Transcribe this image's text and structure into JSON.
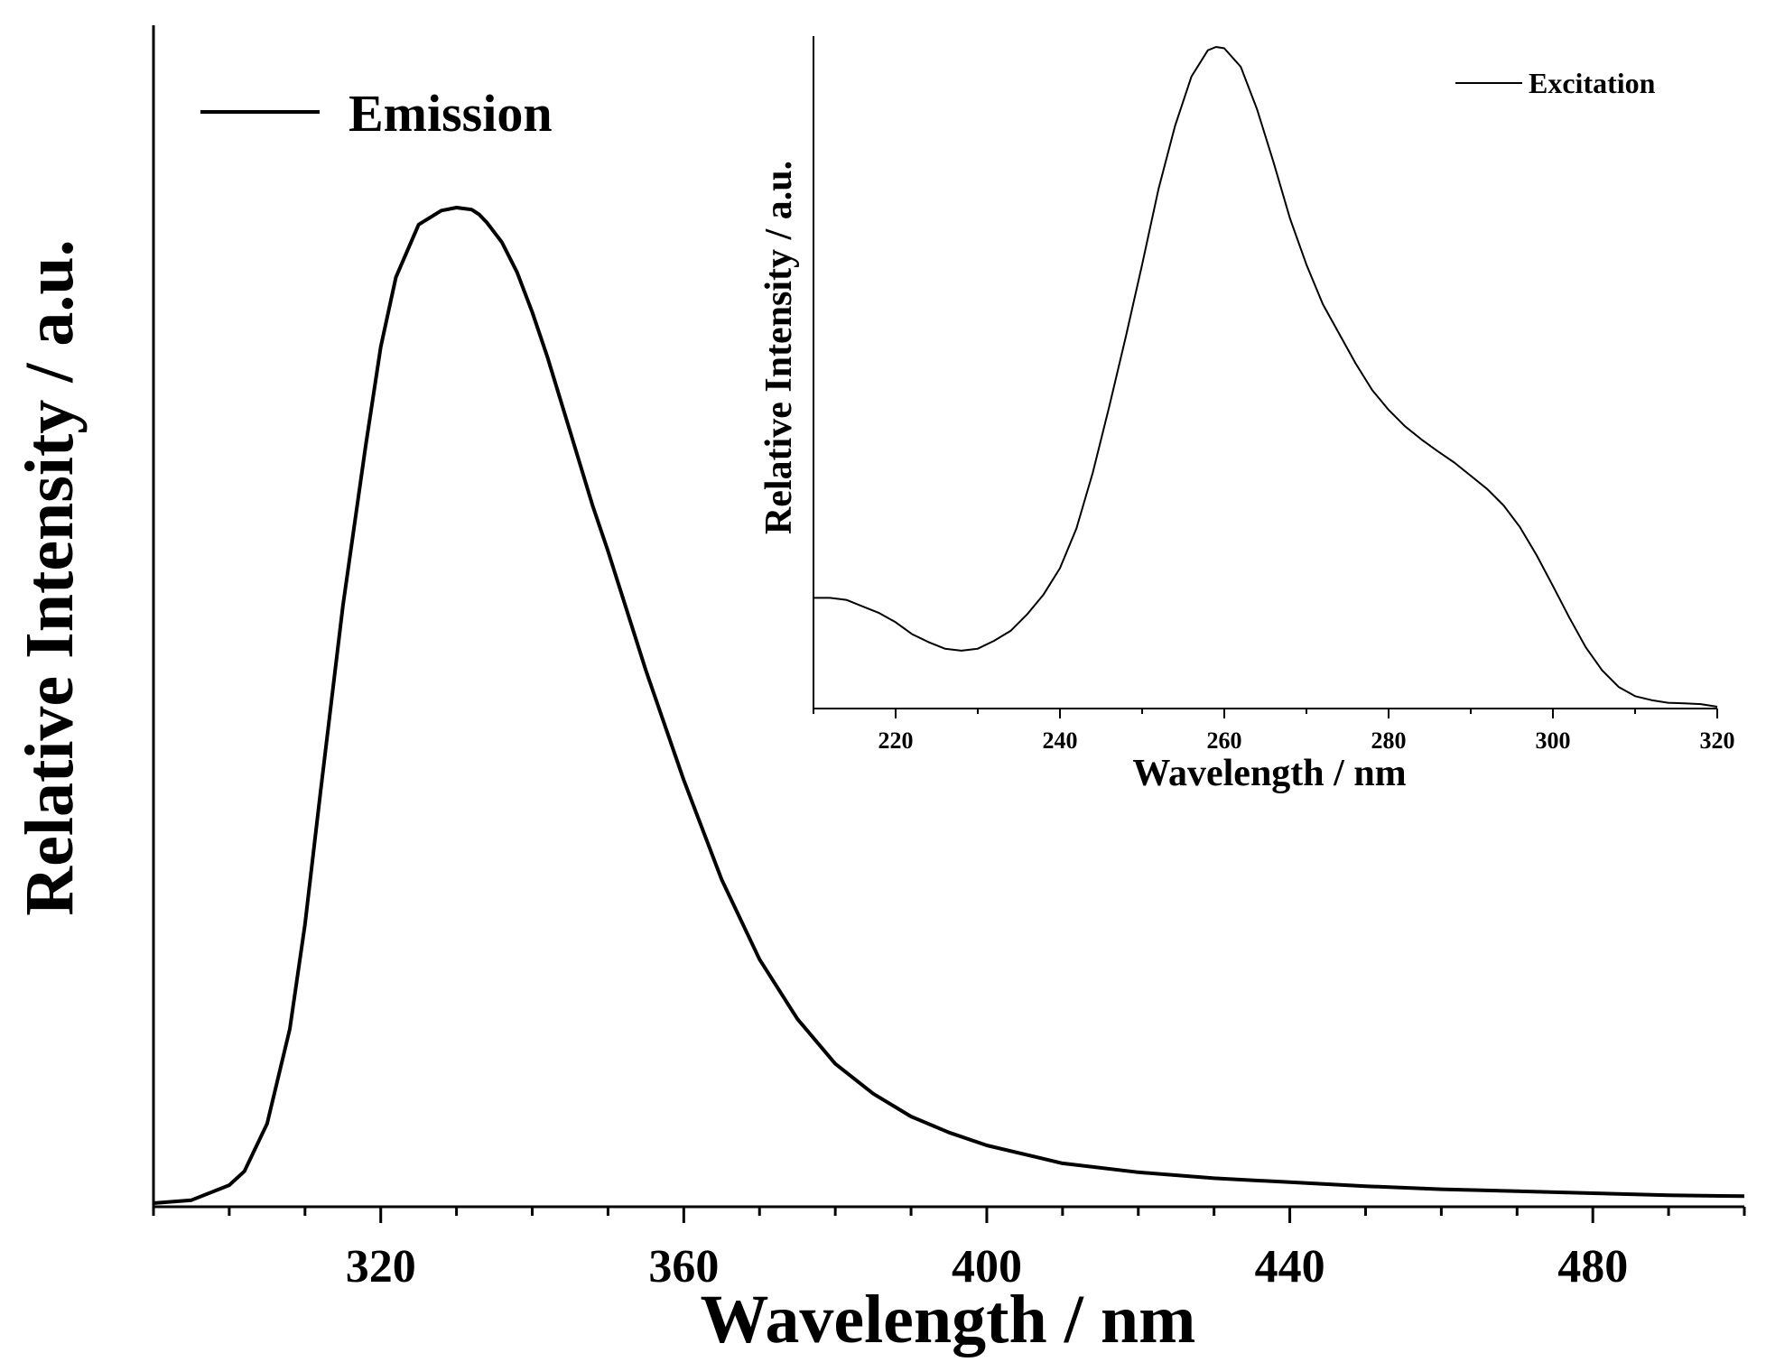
{
  "chart_data": [
    {
      "type": "line",
      "id": "main",
      "xlabel": "Wavelength / nm",
      "ylabel": "Relative Intensity / a.u.",
      "xlim": [
        290,
        500
      ],
      "ylim": [
        0,
        1.0
      ],
      "xticks": [
        320,
        360,
        400,
        440,
        480
      ],
      "xminor_step": 10,
      "yticks_shown": false,
      "legend": {
        "position": "top-left",
        "entries": [
          "Emission"
        ]
      },
      "series": [
        {
          "name": "Emission",
          "color": "#000000",
          "x": [
            290,
            295,
            300,
            302,
            305,
            308,
            310,
            312,
            315,
            318,
            320,
            322,
            325,
            328,
            330,
            332,
            333,
            334,
            336,
            338,
            340,
            342,
            345,
            348,
            350,
            355,
            360,
            365,
            370,
            375,
            380,
            385,
            390,
            395,
            400,
            410,
            420,
            430,
            440,
            450,
            460,
            470,
            480,
            490,
            500
          ],
          "y": [
            0.0,
            0.003,
            0.018,
            0.032,
            0.08,
            0.175,
            0.28,
            0.41,
            0.6,
            0.76,
            0.86,
            0.93,
            0.983,
            0.997,
            1.0,
            0.998,
            0.993,
            0.985,
            0.965,
            0.935,
            0.895,
            0.85,
            0.775,
            0.7,
            0.655,
            0.535,
            0.425,
            0.325,
            0.245,
            0.185,
            0.14,
            0.11,
            0.087,
            0.071,
            0.058,
            0.04,
            0.031,
            0.025,
            0.021,
            0.017,
            0.014,
            0.012,
            0.01,
            0.008,
            0.007
          ]
        }
      ]
    },
    {
      "type": "line",
      "id": "inset",
      "xlabel": "Wavelength / nm",
      "ylabel": "Relative Intensity / a.u.",
      "xlim": [
        210,
        320
      ],
      "ylim": [
        0,
        1.0
      ],
      "xticks": [
        220,
        240,
        260,
        280,
        300,
        320
      ],
      "xminor_step": 10,
      "yticks_shown": false,
      "legend": {
        "position": "top-right",
        "entries": [
          "Excitation"
        ]
      },
      "series": [
        {
          "name": "Excitation",
          "color": "#000000",
          "x": [
            210,
            212,
            214,
            216,
            218,
            220,
            222,
            224,
            226,
            228,
            230,
            232,
            234,
            236,
            238,
            240,
            242,
            244,
            246,
            248,
            250,
            252,
            254,
            256,
            258,
            259,
            260,
            262,
            264,
            266,
            268,
            270,
            272,
            274,
            276,
            278,
            280,
            282,
            284,
            286,
            288,
            290,
            292,
            294,
            296,
            298,
            300,
            302,
            304,
            306,
            308,
            310,
            312,
            314,
            316,
            318,
            320
          ],
          "y": [
            0.165,
            0.165,
            0.162,
            0.152,
            0.142,
            0.128,
            0.11,
            0.098,
            0.088,
            0.085,
            0.088,
            0.1,
            0.115,
            0.14,
            0.17,
            0.21,
            0.27,
            0.355,
            0.455,
            0.56,
            0.67,
            0.785,
            0.88,
            0.955,
            0.995,
            1.0,
            0.998,
            0.97,
            0.905,
            0.825,
            0.74,
            0.67,
            0.61,
            0.565,
            0.52,
            0.48,
            0.45,
            0.425,
            0.405,
            0.387,
            0.37,
            0.35,
            0.33,
            0.305,
            0.272,
            0.23,
            0.183,
            0.135,
            0.09,
            0.055,
            0.03,
            0.016,
            0.01,
            0.006,
            0.005,
            0.004,
            0.0
          ]
        }
      ]
    }
  ]
}
